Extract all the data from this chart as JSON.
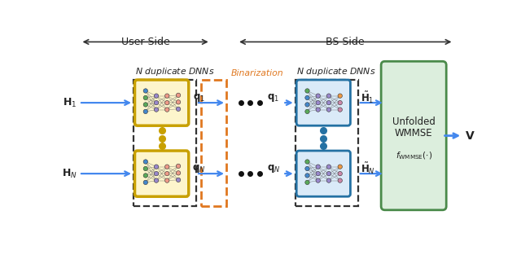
{
  "fig_width": 6.4,
  "fig_height": 3.13,
  "dpi": 100,
  "bg_color": "#ffffff",
  "user_side_label": "User Side",
  "bs_side_label": "BS Side",
  "n_dup_dnn_label": "$N$ duplicate DNNs",
  "binarization_label": "Binarization",
  "unfolded_line1": "Unfolded",
  "unfolded_line2": "WMMSE",
  "f_wmmse_label": "$f_{\\mathrm{WMMSE}}(\\cdot)$",
  "h1_label": "$\\mathbf{H}_1$",
  "hN_label": "$\\mathbf{H}_N$",
  "q1_label": "$\\mathbf{q}_1$",
  "qN_label": "$\\mathbf{q}_N$",
  "hhat1_label": "$\\tilde{\\mathbf{H}}_1$",
  "hhatN_label": "$\\tilde{\\mathbf{H}}_N$",
  "v_label": "$\\mathbf{V}$",
  "arrow_color": "#4488ee",
  "dnn_user_fill": "#fdf5cc",
  "dnn_user_edge": "#c8a000",
  "dnn_user_edge_width": 2.5,
  "dnn_bs_fill": "#daeaf8",
  "dnn_bs_edge": "#2471a3",
  "dnn_bs_edge_width": 2.0,
  "binarization_edge": "#e07820",
  "outer_box_edge": "#333333",
  "wmmse_fill": "#dceedd",
  "wmmse_edge": "#4a8a4a",
  "dot_color_user": "#c8a000",
  "dot_color_bs": "#2471a3",
  "binarization_color": "#e07820",
  "channel_dot_color": "#111111"
}
